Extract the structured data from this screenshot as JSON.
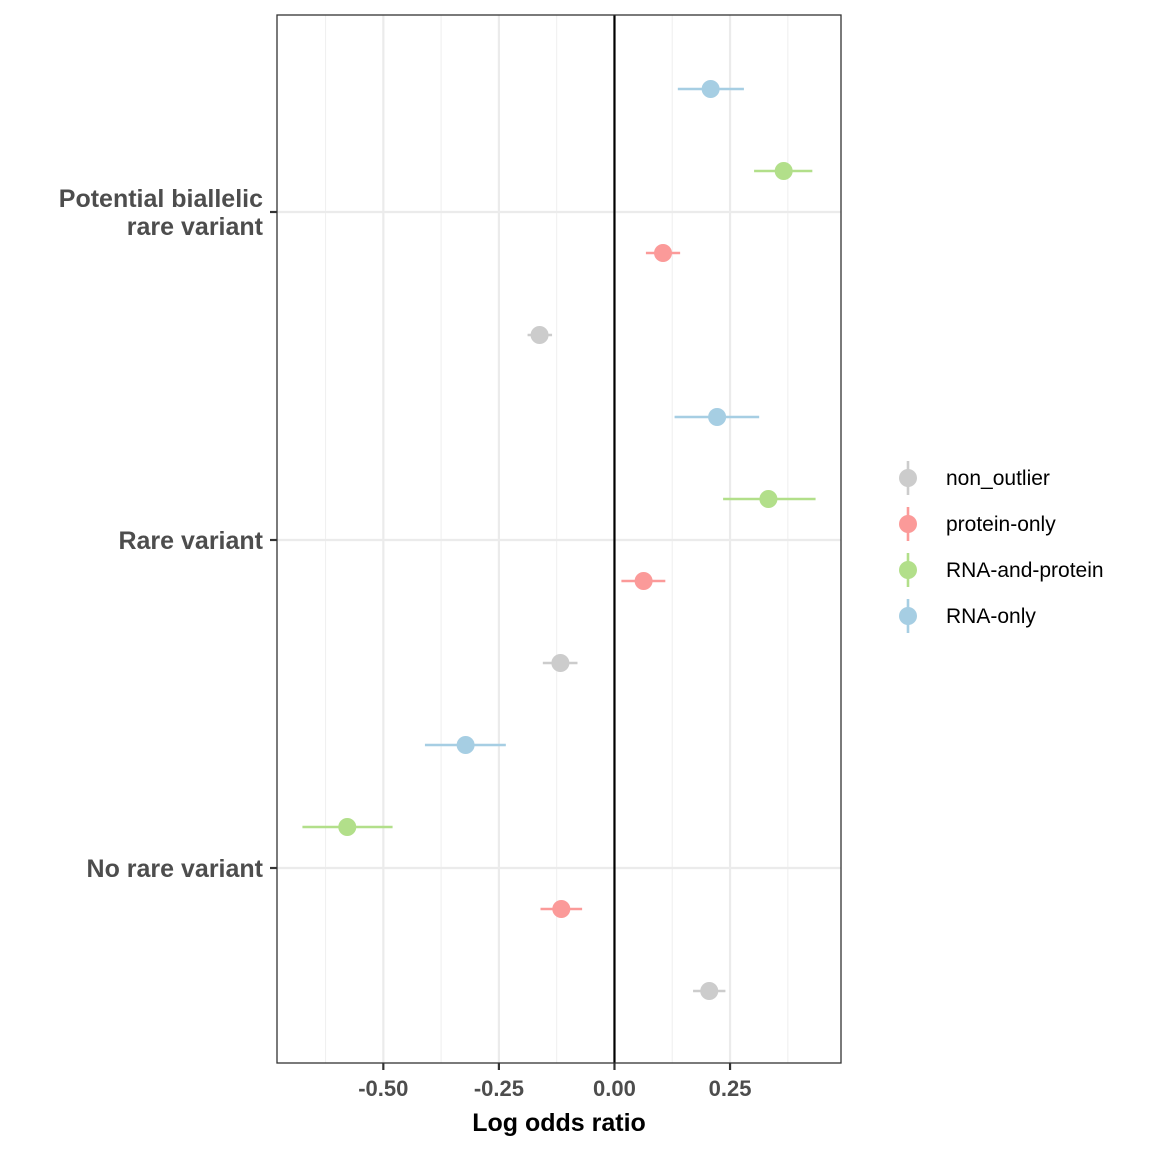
{
  "chart_data": {
    "type": "scatter",
    "subtype": "forest-plot",
    "xlabel": "Log odds ratio",
    "ylabel": "",
    "xlim": [
      -0.73,
      0.49
    ],
    "x_ticks": [
      -0.5,
      -0.25,
      0.0,
      0.25
    ],
    "x_tick_labels": [
      "-0.50",
      "-0.25",
      "0.00",
      "0.25"
    ],
    "reference_line_x": 0,
    "grid": true,
    "legend_position": "right",
    "categories": [
      "No rare variant",
      "Rare variant",
      "Potential biallelic rare variant"
    ],
    "category_labels": [
      [
        "No rare variant"
      ],
      [
        "Rare variant"
      ],
      [
        "Potential biallelic",
        "rare variant"
      ]
    ],
    "series": [
      {
        "name": "non_outlier",
        "color": "#cccccc",
        "estimate": [
          0.205,
          -0.117,
          -0.162
        ],
        "ci_low": [
          0.17,
          -0.155,
          -0.188
        ],
        "ci_high": [
          0.24,
          -0.08,
          -0.135
        ]
      },
      {
        "name": "protein-only",
        "color": "#fb9a99",
        "estimate": [
          -0.115,
          0.063,
          0.105
        ],
        "ci_low": [
          -0.16,
          0.015,
          0.068
        ],
        "ci_high": [
          -0.07,
          0.11,
          0.142
        ]
      },
      {
        "name": "RNA-and-protein",
        "color": "#b2df8a",
        "estimate": [
          -0.578,
          0.333,
          0.366
        ],
        "ci_low": [
          -0.675,
          0.235,
          0.302
        ],
        "ci_high": [
          -0.48,
          0.435,
          0.428
        ]
      },
      {
        "name": "RNA-only",
        "color": "#a6cee3",
        "estimate": [
          -0.322,
          0.222,
          0.208
        ],
        "ci_low": [
          -0.41,
          0.13,
          0.137
        ],
        "ci_high": [
          -0.235,
          0.313,
          0.28
        ]
      }
    ]
  }
}
